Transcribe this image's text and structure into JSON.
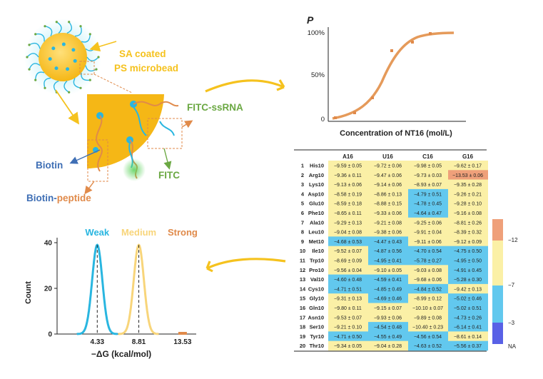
{
  "colors": {
    "gold": "#F5C21E",
    "orange": "#E08A4A",
    "cyan": "#29B6E0",
    "green": "#6BA843",
    "blue": "#3F6FB5",
    "heat_orange": "#EFA07A",
    "heat_yellow": "#FBF0A6",
    "heat_cyan": "#62C8EE",
    "heat_blue": "#5961E6"
  },
  "schematic": {
    "bead_label_line1": "SA coated",
    "bead_label_line2": "PS microbead",
    "fitc_ssrna": "FITC-ssRNA",
    "biotin": "Biotin",
    "fitc": "FITC",
    "biotin_peptide_a": "Biotin-",
    "biotin_peptide_b": "peptide"
  },
  "sigmoid": {
    "ylabel": "P",
    "xlabel": "Concentration of NT16 (mol/L)",
    "ticks": [
      "100%",
      "50%",
      "0"
    ]
  },
  "chart_data": {
    "type": "line",
    "ylabel": "Count",
    "xlabel": "−ΔG (kcal/mol)",
    "xticks": [
      "4.33",
      "8.81",
      "13.53"
    ],
    "yticks": [
      "40",
      "20",
      "0"
    ],
    "ylim": [
      0,
      40
    ],
    "series": [
      {
        "name": "Weak",
        "mean": 4.33,
        "peak": 39
      },
      {
        "name": "Medium",
        "mean": 8.81,
        "peak": 39
      },
      {
        "name": "Strong",
        "mean": 13.53,
        "peak": 1
      }
    ]
  },
  "table": {
    "columns": [
      "A16",
      "U16",
      "C16",
      "G16"
    ],
    "rows": [
      {
        "n": "1",
        "p": "His10",
        "v": [
          "−9.59 ± 0.05",
          "−9.72 ± 0.06",
          "−9.98 ± 0.05",
          "−9.62 ± 0.17"
        ],
        "c": [
          "y",
          "y",
          "y",
          "y"
        ]
      },
      {
        "n": "2",
        "p": "Arg10",
        "v": [
          "−9.36 ± 0.11",
          "−9.47 ± 0.06",
          "−9.73 ± 0.03",
          "−13.53 ± 0.06"
        ],
        "c": [
          "y",
          "y",
          "y",
          "o"
        ]
      },
      {
        "n": "3",
        "p": "Lys10",
        "v": [
          "−9.13 ± 0.06",
          "−9.14 ± 0.06",
          "−8.93 ± 0.07",
          "−9.35 ± 0.28"
        ],
        "c": [
          "y",
          "y",
          "y",
          "y"
        ]
      },
      {
        "n": "4",
        "p": "Asp10",
        "v": [
          "−8.58 ± 0.19",
          "−8.86 ± 0.13",
          "−4.79 ± 0.51",
          "−9.26 ± 0.21"
        ],
        "c": [
          "y",
          "y",
          "b",
          "y"
        ]
      },
      {
        "n": "5",
        "p": "Glu10",
        "v": [
          "−8.59 ± 0.18",
          "−8.88 ± 0.15",
          "−4.78 ± 0.45",
          "−9.28 ± 0.10"
        ],
        "c": [
          "y",
          "y",
          "b",
          "y"
        ]
      },
      {
        "n": "6",
        "p": "Phe10",
        "v": [
          "−8.65 ± 0.11",
          "−9.33 ± 0.06",
          "−4.64 ± 0.47",
          "−9.16 ± 0.08"
        ],
        "c": [
          "y",
          "y",
          "b",
          "y"
        ]
      },
      {
        "n": "7",
        "p": "Ala10",
        "v": [
          "−9.29 ± 0.13",
          "−9.21 ± 0.08",
          "−9.25 ± 0.06",
          "−8.81 ± 0.26"
        ],
        "c": [
          "y",
          "y",
          "y",
          "y"
        ]
      },
      {
        "n": "8",
        "p": "Leu10",
        "v": [
          "−9.04 ± 0.08",
          "−9.38 ± 0.06",
          "−9.91 ± 0.04",
          "−8.39 ± 0.32"
        ],
        "c": [
          "y",
          "y",
          "y",
          "y"
        ]
      },
      {
        "n": "9",
        "p": "Met10",
        "v": [
          "−4.68 ± 0.53",
          "−4.47 ± 0.43",
          "−9.11 ± 0.06",
          "−9.12 ± 0.09"
        ],
        "c": [
          "b",
          "b",
          "y",
          "y"
        ]
      },
      {
        "n": "10",
        "p": "Ile10",
        "v": [
          "−9.52 ± 0.07",
          "−4.87 ± 0.56",
          "−4.70 ± 0.54",
          "−4.75 ± 0.50"
        ],
        "c": [
          "y",
          "b",
          "b",
          "b"
        ]
      },
      {
        "n": "11",
        "p": "Trp10",
        "v": [
          "−8.69 ± 0.09",
          "−4.95 ± 0.41",
          "−5.78 ± 0.27",
          "−4.95 ± 0.50"
        ],
        "c": [
          "y",
          "b",
          "b",
          "b"
        ]
      },
      {
        "n": "12",
        "p": "Pro10",
        "v": [
          "−9.56 ± 0.04",
          "−9.10 ± 0.05",
          "−9.03 ± 0.08",
          "−4.91 ± 0.45"
        ],
        "c": [
          "y",
          "y",
          "y",
          "b"
        ]
      },
      {
        "n": "13",
        "p": "Val10",
        "v": [
          "−4.60 ± 0.48",
          "−4.59 ± 0.41",
          "−9.68 ± 0.06",
          "−5.28 ± 0.30"
        ],
        "c": [
          "b",
          "b",
          "y",
          "b"
        ]
      },
      {
        "n": "14",
        "p": "Cys10",
        "v": [
          "−4.71 ± 0.51",
          "−4.85 ± 0.49",
          "−4.84 ± 0.52",
          "−9.42 ± 0.13"
        ],
        "c": [
          "b",
          "b",
          "b",
          "y"
        ]
      },
      {
        "n": "15",
        "p": "Gly10",
        "v": [
          "−9.31 ± 0.13",
          "−4.69 ± 0.46",
          "−8.99 ± 0.12",
          "−5.02 ± 0.46"
        ],
        "c": [
          "y",
          "b",
          "y",
          "b"
        ]
      },
      {
        "n": "16",
        "p": "Gln10",
        "v": [
          "−9.80 ± 0.11",
          "−9.15 ± 0.07",
          "−10.10 ± 0.07",
          "−5.02 ± 0.51"
        ],
        "c": [
          "y",
          "y",
          "y",
          "b"
        ]
      },
      {
        "n": "17",
        "p": "Asn10",
        "v": [
          "−9.53 ± 0.07",
          "−9.93 ± 0.06",
          "−9.89 ± 0.08",
          "−4.73 ± 0.26"
        ],
        "c": [
          "y",
          "y",
          "y",
          "b"
        ]
      },
      {
        "n": "18",
        "p": "Ser10",
        "v": [
          "−9.21 ± 0.10",
          "−4.54 ± 0.48",
          "−10.40 ± 0.23",
          "−6.14 ± 0.41"
        ],
        "c": [
          "y",
          "b",
          "y",
          "b"
        ]
      },
      {
        "n": "19",
        "p": "Tyr10",
        "v": [
          "−4.71 ± 0.50",
          "−4.55 ± 0.49",
          "−4.56 ± 0.54",
          "−8.61 ± 0.14"
        ],
        "c": [
          "b",
          "b",
          "b",
          "y"
        ]
      },
      {
        "n": "20",
        "p": "Thr10",
        "v": [
          "−9.34 ± 0.05",
          "−9.04 ± 0.28",
          "−4.63 ± 0.52",
          "−5.56 ± 0.37"
        ],
        "c": [
          "y",
          "y",
          "b",
          "b"
        ]
      }
    ]
  },
  "colorbar": {
    "labels": [
      "−12",
      "−7",
      "−3",
      "NA"
    ]
  }
}
